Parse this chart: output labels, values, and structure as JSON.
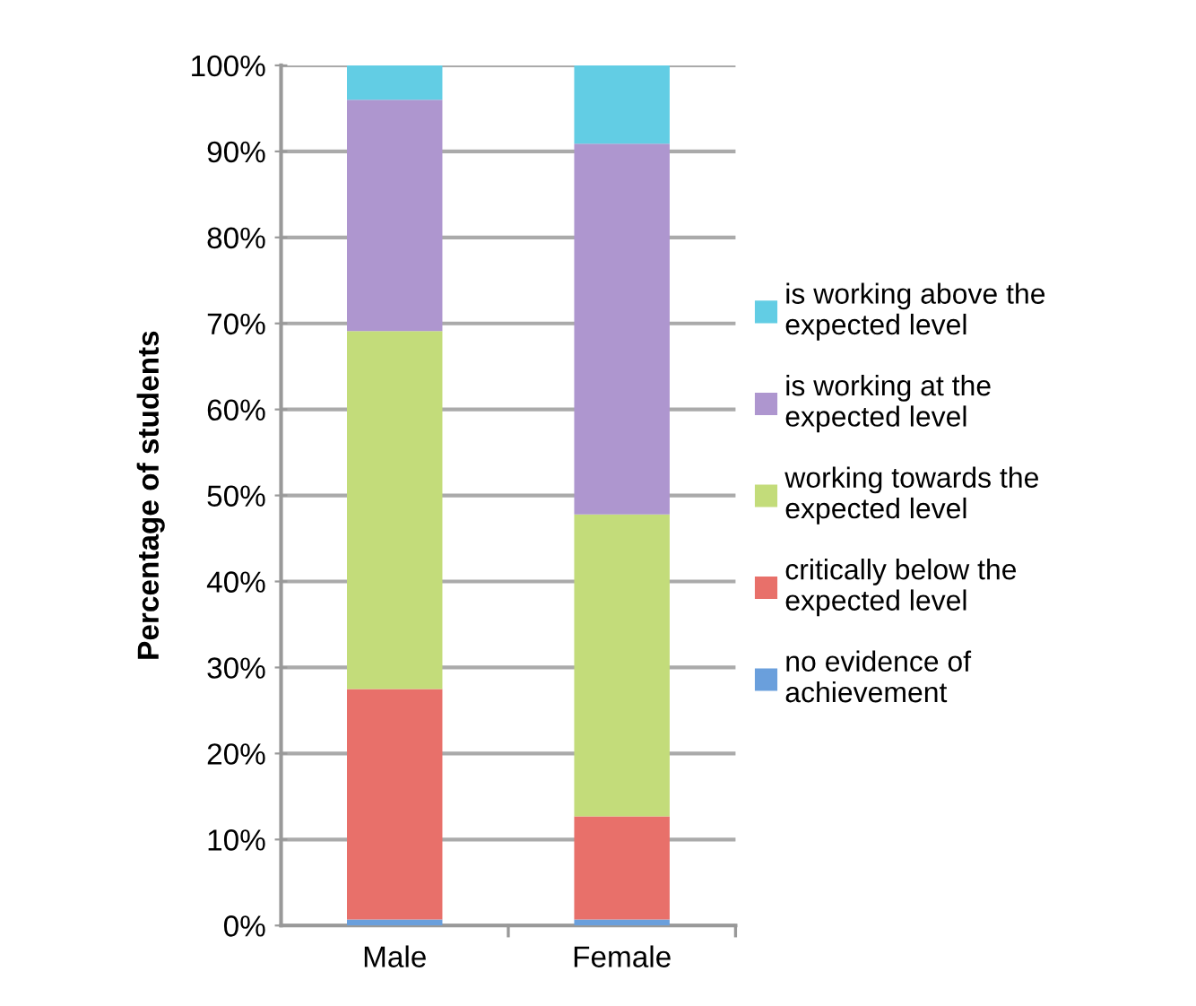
{
  "chart_data": {
    "type": "bar",
    "stacked": true,
    "ylabel": "Percentage of students",
    "categories": [
      "Male",
      "Female"
    ],
    "series": [
      {
        "name": "no evidence of\nachievement",
        "color": "#6a9fdc",
        "values": [
          0.7,
          0.7
        ]
      },
      {
        "name": "critically below the\nexpected level",
        "color": "#e8706a",
        "values": [
          26.8,
          12.0
        ]
      },
      {
        "name": "working towards the\nexpected level",
        "color": "#c3dc7a",
        "values": [
          41.6,
          35.1
        ]
      },
      {
        "name": "is working at the\nexpected level",
        "color": "#ae96cf",
        "values": [
          26.9,
          43.1
        ]
      },
      {
        "name": "is working above the\nexpected level",
        "color": "#62cde4",
        "values": [
          4.0,
          9.1
        ]
      }
    ],
    "ylim": [
      0,
      100
    ],
    "yticks": [
      {
        "value": 0,
        "label": "0%"
      },
      {
        "value": 10,
        "label": "10%"
      },
      {
        "value": 20,
        "label": "20%"
      },
      {
        "value": 30,
        "label": "30%"
      },
      {
        "value": 40,
        "label": "40%"
      },
      {
        "value": 50,
        "label": "50%"
      },
      {
        "value": 60,
        "label": "60%"
      },
      {
        "value": 70,
        "label": "70%"
      },
      {
        "value": 80,
        "label": "80%"
      },
      {
        "value": 90,
        "label": "90%"
      },
      {
        "value": 100,
        "label": "100%"
      }
    ],
    "grid": "y",
    "legend": "right"
  }
}
